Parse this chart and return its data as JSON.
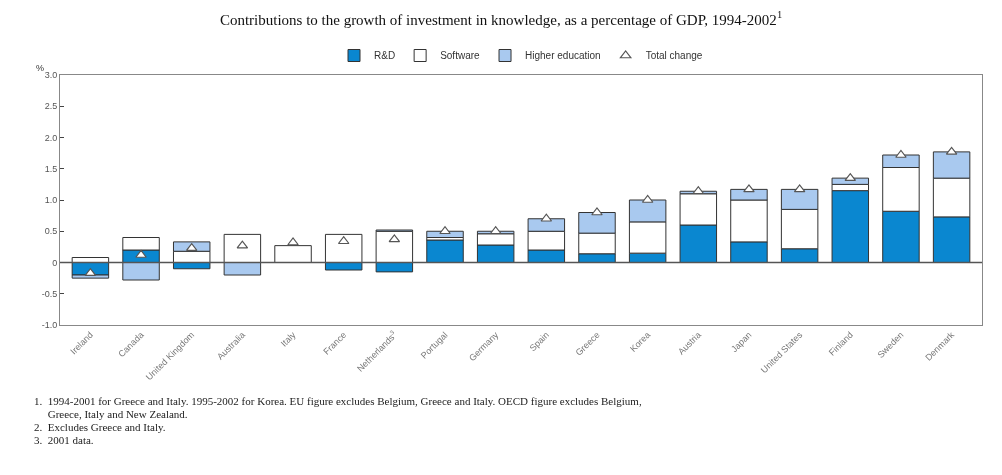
{
  "chart_data": {
    "type": "bar",
    "stacked": true,
    "title": "Contributions to the growth of investment in knowledge, as a percentage of GDP, 1994-2002$^{1}$",
    "ylabel": "%",
    "categories": [
      "Ireland",
      "Canada",
      "United Kingdom",
      "Australia",
      "Italy",
      "France",
      "Netherlands$^{3}$",
      "Portugal",
      "Germany",
      "Spain",
      "Greece",
      "Korea",
      "Austria",
      "Japan",
      "United States",
      "Finland",
      "Sweden",
      "Denmark"
    ],
    "series": [
      {
        "name": "R&D",
        "color": "#0a87d0",
        "values": [
          -0.2,
          0.2,
          -0.1,
          null,
          null,
          -0.12,
          -0.15,
          0.36,
          0.28,
          0.2,
          0.14,
          0.15,
          0.6,
          0.33,
          0.22,
          1.15,
          0.82,
          0.73
        ]
      },
      {
        "name": "Software",
        "color": "#ffffff",
        "values": [
          0.08,
          0.2,
          0.18,
          0.45,
          0.27,
          0.45,
          0.5,
          0.04,
          0.18,
          0.3,
          0.33,
          0.5,
          0.5,
          0.67,
          0.63,
          0.1,
          0.7,
          0.62
        ]
      },
      {
        "name": "Higher education",
        "color": "#a9c9ef",
        "values": [
          -0.05,
          -0.28,
          0.15,
          -0.2,
          null,
          null,
          0.02,
          0.1,
          0.04,
          0.2,
          0.33,
          0.35,
          0.04,
          0.17,
          0.32,
          0.1,
          0.2,
          0.42
        ]
      },
      {
        "name": "Total change",
        "type": "scatter",
        "marker": "triangle",
        "color": "#ffffff",
        "values": [
          -0.17,
          0.12,
          0.23,
          0.27,
          0.32,
          0.34,
          0.37,
          0.5,
          0.5,
          0.7,
          0.8,
          1.0,
          1.14,
          1.17,
          1.17,
          1.35,
          1.72,
          1.77
        ]
      }
    ],
    "ylim": [
      -1.0,
      3.0
    ],
    "yticks": [
      {
        "value": -1.0,
        "label": "-1.0"
      },
      {
        "value": -0.5,
        "label": "-0.5"
      },
      0,
      0.5,
      {
        "value": 1.0,
        "label": "1.0"
      },
      1.5,
      {
        "value": 2.0,
        "label": "2.0"
      },
      2.5,
      {
        "value": 3.0,
        "label": "3.0"
      }
    ],
    "legend": "top",
    "ref_lines": [
      {
        "axis": "y",
        "value": 0,
        "color": "#555555"
      }
    ],
    "annotations": [
      "1.  1994-2001 for Greece and Italy. 1995-2002 for Korea. EU figure excludes Belgium, Greece and Italy. OECD figure excludes Belgium,",
      "     Greece, Italy and New Zealand.",
      "2.  Excludes Greece and Italy.",
      "3.  2001 data."
    ]
  }
}
